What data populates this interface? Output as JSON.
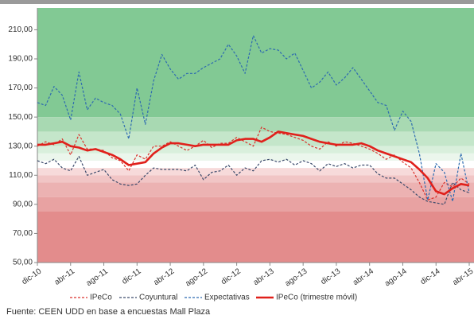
{
  "chart_data": {
    "type": "line",
    "categories": [
      "dic-10",
      null,
      null,
      null,
      "abr-11",
      null,
      null,
      null,
      "ago-11",
      null,
      null,
      null,
      "dic-11",
      null,
      null,
      null,
      "abr-12",
      null,
      null,
      null,
      "ago-12",
      null,
      null,
      null,
      "dic-12",
      null,
      null,
      null,
      "abr-13",
      null,
      null,
      null,
      "ago-13",
      null,
      null,
      null,
      "dic-13",
      null,
      null,
      null,
      "abr-14",
      null,
      null,
      null,
      "ago-14",
      null,
      null,
      null,
      "dic-14",
      null,
      null,
      null,
      "abr-15"
    ],
    "series": [
      {
        "name": "IPeCo",
        "color": "#d9322c",
        "dash": true,
        "width": 1.2,
        "values": [
          130,
          133,
          131,
          135,
          124,
          138,
          128,
          128,
          127,
          122,
          120,
          113,
          124,
          121,
          130,
          130,
          133,
          130,
          127,
          130,
          134,
          129,
          132,
          132,
          136,
          133,
          130,
          143,
          140,
          139,
          138,
          136,
          134,
          130,
          128,
          133,
          130,
          133,
          132,
          130,
          128,
          125,
          121,
          124,
          119,
          115,
          105,
          93,
          95,
          105,
          102,
          108,
          104
        ]
      },
      {
        "name": "Coyuntural",
        "color": "#3b4a6b",
        "dash": true,
        "width": 1.2,
        "values": [
          120,
          118,
          121,
          115,
          113,
          123,
          110,
          112,
          114,
          107,
          104,
          103,
          104,
          110,
          115,
          114,
          114,
          114,
          113,
          117,
          107,
          112,
          113,
          117,
          110,
          115,
          113,
          120,
          121,
          119,
          121,
          117,
          120,
          118,
          113,
          118,
          116,
          118,
          115,
          117,
          117,
          111,
          108,
          108,
          104,
          100,
          95,
          92,
          91,
          90,
          105,
          100,
          98
        ]
      },
      {
        "name": "Expectativas",
        "color": "#2e6bb0",
        "dash": true,
        "width": 1.2,
        "values": [
          160,
          158,
          171,
          165,
          148,
          181,
          155,
          163,
          160,
          158,
          152,
          135,
          170,
          145,
          175,
          193,
          183,
          176,
          180,
          180,
          184,
          187,
          190,
          200,
          192,
          180,
          206,
          194,
          197,
          196,
          190,
          194,
          182,
          170,
          174,
          181,
          172,
          177,
          184,
          176,
          168,
          160,
          158,
          141,
          154,
          147,
          125,
          93,
          118,
          112,
          92,
          125,
          98
        ]
      },
      {
        "name": "IPeCo (trimestre móvil)",
        "color": "#e0201b",
        "dash": false,
        "width": 2.6,
        "values": [
          131,
          131,
          132,
          133,
          130,
          129,
          127,
          128,
          126,
          124,
          121,
          117,
          118,
          119,
          125,
          129,
          132,
          132,
          131,
          130,
          131,
          131,
          131,
          131,
          134,
          135,
          135,
          133,
          136,
          140,
          139,
          138,
          137,
          135,
          133,
          132,
          131,
          131,
          131,
          132,
          130,
          127,
          125,
          123,
          121,
          119,
          114,
          108,
          99,
          97,
          101,
          104,
          103
        ]
      }
    ],
    "bands": [
      {
        "from": 150,
        "to": 225,
        "color": "#82c994"
      },
      {
        "from": 140,
        "to": 150,
        "color": "#a8d9b2"
      },
      {
        "from": 130,
        "to": 140,
        "color": "#c4e6ca"
      },
      {
        "from": 125,
        "to": 130,
        "color": "#d9efdc"
      },
      {
        "from": 120,
        "to": 125,
        "color": "#ebf6ec"
      },
      {
        "from": 115,
        "to": 120,
        "color": "#ffffff"
      },
      {
        "from": 110,
        "to": 115,
        "color": "#f7dada"
      },
      {
        "from": 105,
        "to": 110,
        "color": "#f1c5c5"
      },
      {
        "from": 95,
        "to": 105,
        "color": "#ecb2b2"
      },
      {
        "from": 85,
        "to": 95,
        "color": "#e8a2a2"
      },
      {
        "from": 50,
        "to": 85,
        "color": "#e38c8c"
      }
    ],
    "ylim": [
      50,
      225
    ],
    "yticks": [
      {
        "value": 50,
        "label": "50,00"
      },
      {
        "value": 70,
        "label": "70,00"
      },
      {
        "value": 90,
        "label": "90,00"
      },
      {
        "value": 110,
        "label": "110,00"
      },
      {
        "value": 130,
        "label": "130,00"
      },
      {
        "value": 150,
        "label": "150,00"
      },
      {
        "value": 170,
        "label": "170,00"
      },
      {
        "value": 190,
        "label": "190,00"
      },
      {
        "value": 210,
        "label": "210,00"
      }
    ],
    "source": "Fuente: CEEN UDD en base a encuestas Mall Plaza"
  }
}
